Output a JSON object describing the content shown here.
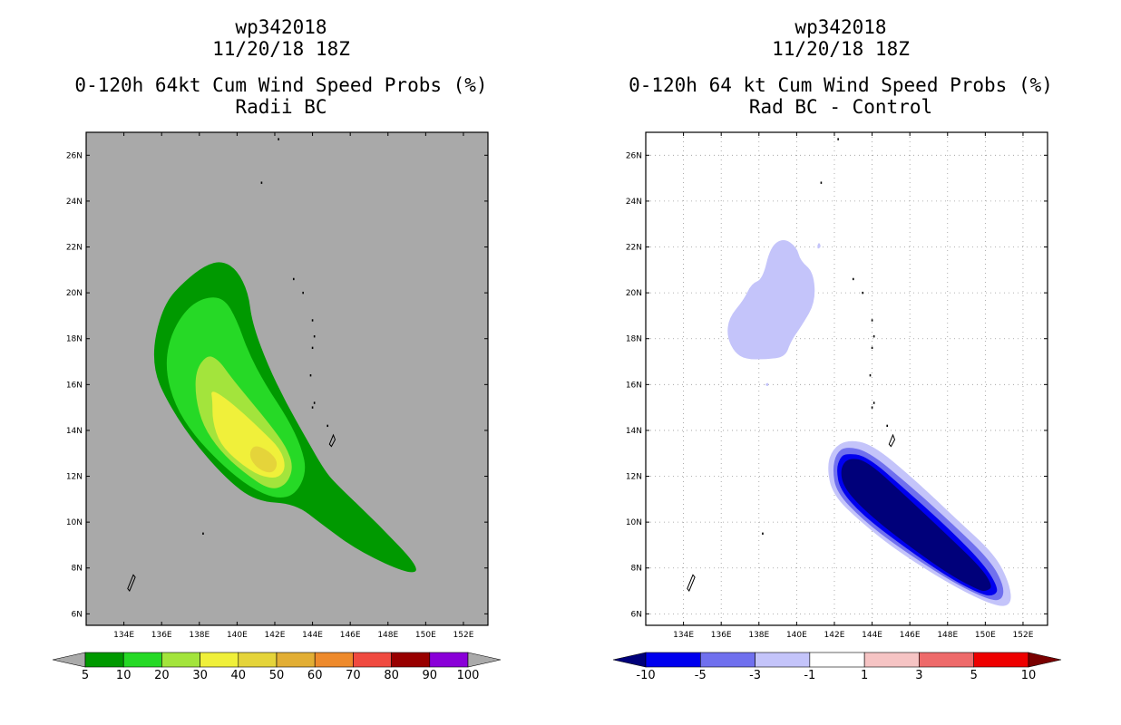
{
  "chart_data": [
    {
      "type": "contour-map",
      "title_lines": [
        "wp342018",
        "11/20/18 18Z",
        "0-120h 64kt Cum Wind Speed Probs (%)",
        "Radii BC"
      ],
      "x_ticks": [
        "134E",
        "136E",
        "138E",
        "140E",
        "142E",
        "144E",
        "146E",
        "148E",
        "150E",
        "152E"
      ],
      "y_ticks": [
        "6N",
        "8N",
        "10N",
        "12N",
        "14N",
        "16N",
        "18N",
        "20N",
        "22N",
        "24N",
        "26N"
      ],
      "xlim": [
        132.0,
        153.3
      ],
      "ylim": [
        5.5,
        27.0
      ],
      "background": "#a9a9a9",
      "gridlines": false,
      "colorbar": {
        "labels": [
          "5",
          "10",
          "20",
          "30",
          "40",
          "50",
          "60",
          "70",
          "80",
          "90",
          "100"
        ],
        "colors": [
          "#009900",
          "#26d926",
          "#a3e43c",
          "#f0f03a",
          "#e5d43a",
          "#e2ae34",
          "#ee8a2c",
          "#f04a40",
          "#980000",
          "#8a00d8"
        ],
        "end_colors": [
          "#aaaaaa",
          "#aaaaaa"
        ]
      },
      "contours": [
        {
          "level": 5,
          "color": "#009900",
          "points": [
            [
              138.3,
              21.2
            ],
            [
              139.2,
              21.4
            ],
            [
              140.0,
              21.0
            ],
            [
              140.6,
              20.0
            ],
            [
              140.8,
              18.7
            ],
            [
              141.6,
              16.9
            ],
            [
              142.6,
              15.2
            ],
            [
              143.7,
              13.6
            ],
            [
              144.6,
              12.3
            ],
            [
              145.2,
              11.7
            ],
            [
              147.5,
              9.9
            ],
            [
              149.7,
              8.0
            ],
            [
              149.2,
              7.7
            ],
            [
              146.5,
              8.7
            ],
            [
              144.5,
              9.9
            ],
            [
              143.1,
              10.8
            ],
            [
              141.0,
              10.9
            ],
            [
              139.4,
              11.9
            ],
            [
              137.5,
              13.7
            ],
            [
              136.2,
              15.4
            ],
            [
              135.6,
              16.6
            ],
            [
              135.6,
              18.0
            ],
            [
              136.2,
              19.6
            ],
            [
              137.2,
              20.5
            ]
          ]
        },
        {
          "level": 10,
          "color": "#26d926",
          "points": [
            [
              138.2,
              19.8
            ],
            [
              139.3,
              19.8
            ],
            [
              140.0,
              18.8
            ],
            [
              140.6,
              17.4
            ],
            [
              141.5,
              16.0
            ],
            [
              142.7,
              14.5
            ],
            [
              143.4,
              13.3
            ],
            [
              143.7,
              12.2
            ],
            [
              143.1,
              11.2
            ],
            [
              142.1,
              11.0
            ],
            [
              140.7,
              11.5
            ],
            [
              139.2,
              12.5
            ],
            [
              137.7,
              13.8
            ],
            [
              136.7,
              15.1
            ],
            [
              136.2,
              16.6
            ],
            [
              136.4,
              18.0
            ],
            [
              137.2,
              19.2
            ]
          ]
        },
        {
          "level": 20,
          "color": "#a3e43c",
          "points": [
            [
              138.4,
              17.3
            ],
            [
              139.0,
              17.1
            ],
            [
              139.7,
              16.3
            ],
            [
              140.6,
              15.4
            ],
            [
              141.7,
              14.3
            ],
            [
              142.6,
              13.3
            ],
            [
              143.0,
              12.4
            ],
            [
              142.6,
              11.6
            ],
            [
              141.7,
              11.4
            ],
            [
              140.3,
              12.2
            ],
            [
              139.1,
              13.1
            ],
            [
              138.2,
              14.2
            ],
            [
              137.8,
              15.4
            ],
            [
              137.8,
              16.6
            ]
          ]
        },
        {
          "level": 30,
          "color": "#f0f03a",
          "points": [
            [
              138.6,
              15.8
            ],
            [
              139.4,
              15.4
            ],
            [
              140.4,
              14.7
            ],
            [
              141.3,
              14.0
            ],
            [
              142.3,
              13.2
            ],
            [
              142.6,
              12.4
            ],
            [
              142.2,
              11.9
            ],
            [
              141.2,
              12.0
            ],
            [
              140.1,
              12.6
            ],
            [
              139.1,
              13.4
            ],
            [
              138.7,
              14.4
            ],
            [
              138.7,
              15.3
            ]
          ]
        },
        {
          "level": 40,
          "color": "#e5d43a",
          "points": [
            [
              140.9,
              13.4
            ],
            [
              141.7,
              13.1
            ],
            [
              142.2,
              12.6
            ],
            [
              141.9,
              12.1
            ],
            [
              141.1,
              12.3
            ],
            [
              140.6,
              12.9
            ]
          ]
        }
      ],
      "land": [
        {
          "name": "guam-saipan",
          "points": [
            [
              145.0,
              13.3
            ],
            [
              145.2,
              13.6
            ],
            [
              145.1,
              13.8
            ],
            [
              144.9,
              13.4
            ]
          ]
        },
        {
          "name": "palau",
          "points": [
            [
              134.3,
              7.0
            ],
            [
              134.6,
              7.6
            ],
            [
              134.5,
              7.7
            ],
            [
              134.2,
              7.1
            ]
          ]
        }
      ]
    },
    {
      "type": "contour-map",
      "title_lines": [
        "wp342018",
        "11/20/18 18Z",
        "0-120h 64 kt Cum Wind Speed Probs (%)",
        "Rad BC - Control"
      ],
      "x_ticks": [
        "134E",
        "136E",
        "138E",
        "140E",
        "142E",
        "144E",
        "146E",
        "148E",
        "150E",
        "152E"
      ],
      "y_ticks": [
        "6N",
        "8N",
        "10N",
        "12N",
        "14N",
        "16N",
        "18N",
        "20N",
        "22N",
        "24N",
        "26N"
      ],
      "xlim": [
        132.0,
        153.3
      ],
      "ylim": [
        5.5,
        27.0
      ],
      "background": "#ffffff",
      "gridlines": true,
      "colorbar": {
        "labels": [
          "-10",
          "-5",
          "-3",
          "-1",
          "1",
          "3",
          "5",
          "10"
        ],
        "colors": [
          "#0000ee",
          "#7070ee",
          "#c4c4fa",
          "#ffffff",
          "#f6c4c4",
          "#ee6a6a",
          "#ee0000"
        ],
        "end_colors": [
          "#00007a",
          "#7a0000"
        ]
      },
      "contours": [
        {
          "level": -1,
          "color": "#c4c4fa",
          "points": [
            [
              137.6,
              20.4
            ],
            [
              138.2,
              20.6
            ],
            [
              138.6,
              22.0
            ],
            [
              139.3,
              22.4
            ],
            [
              140.0,
              22.0
            ],
            [
              140.2,
              21.4
            ],
            [
              140.9,
              20.9
            ],
            [
              141.0,
              19.6
            ],
            [
              140.3,
              18.6
            ],
            [
              139.7,
              17.9
            ],
            [
              139.4,
              17.2
            ],
            [
              138.4,
              17.1
            ],
            [
              137.3,
              17.1
            ],
            [
              136.7,
              17.4
            ],
            [
              136.3,
              18.1
            ],
            [
              136.4,
              18.9
            ],
            [
              137.2,
              19.7
            ]
          ]
        },
        {
          "level": -1,
          "color": "#c4c4fa",
          "points": [
            [
              142.7,
              13.6
            ],
            [
              144.0,
              13.4
            ],
            [
              146.2,
              11.9
            ],
            [
              148.5,
              10.1
            ],
            [
              150.5,
              8.6
            ],
            [
              151.3,
              7.3
            ],
            [
              151.4,
              6.4
            ],
            [
              150.6,
              6.3
            ],
            [
              148.3,
              7.2
            ],
            [
              145.4,
              8.7
            ],
            [
              143.4,
              10.0
            ],
            [
              141.9,
              11.2
            ],
            [
              141.6,
              12.4
            ],
            [
              141.9,
              13.2
            ]
          ]
        },
        {
          "level": -3,
          "color": "#7070ee",
          "points": [
            [
              142.6,
              13.3
            ],
            [
              143.8,
              13.1
            ],
            [
              146.0,
              11.6
            ],
            [
              148.3,
              9.9
            ],
            [
              150.3,
              8.3
            ],
            [
              151.0,
              7.2
            ],
            [
              150.9,
              6.6
            ],
            [
              150.2,
              6.6
            ],
            [
              148.2,
              7.4
            ],
            [
              145.4,
              8.9
            ],
            [
              143.5,
              10.1
            ],
            [
              142.1,
              11.3
            ],
            [
              141.9,
              12.3
            ],
            [
              142.1,
              13.0
            ]
          ]
        },
        {
          "level": -5,
          "color": "#0000ee",
          "points": [
            [
              142.6,
              13.0
            ],
            [
              143.7,
              12.9
            ],
            [
              145.8,
              11.4
            ],
            [
              148.1,
              9.7
            ],
            [
              150.0,
              8.1
            ],
            [
              150.7,
              7.1
            ],
            [
              150.5,
              6.8
            ],
            [
              149.9,
              6.8
            ],
            [
              148.0,
              7.6
            ],
            [
              145.4,
              9.1
            ],
            [
              143.5,
              10.3
            ],
            [
              142.3,
              11.4
            ],
            [
              142.1,
              12.3
            ],
            [
              142.3,
              12.8
            ]
          ]
        },
        {
          "level": -10,
          "color": "#00007a",
          "points": [
            [
              142.7,
              12.8
            ],
            [
              143.7,
              12.7
            ],
            [
              145.7,
              11.2
            ],
            [
              147.9,
              9.5
            ],
            [
              149.8,
              8.0
            ],
            [
              150.4,
              7.2
            ],
            [
              150.1,
              7.0
            ],
            [
              149.7,
              7.0
            ],
            [
              147.9,
              7.8
            ],
            [
              145.4,
              9.3
            ],
            [
              143.6,
              10.5
            ],
            [
              142.5,
              11.5
            ],
            [
              142.3,
              12.3
            ]
          ]
        },
        {
          "level": -1,
          "color": "#c4c4fa",
          "points": [
            [
              141.1,
              22.1
            ],
            [
              141.2,
              22.2
            ],
            [
              141.3,
              22.0
            ],
            [
              141.1,
              21.9
            ]
          ]
        },
        {
          "level": -1,
          "color": "#c4c4fa",
          "points": [
            [
              138.3,
              16.0
            ],
            [
              138.5,
              16.1
            ],
            [
              138.5,
              15.9
            ]
          ]
        }
      ],
      "land": [
        {
          "name": "guam-saipan",
          "points": [
            [
              145.0,
              13.3
            ],
            [
              145.2,
              13.6
            ],
            [
              145.1,
              13.8
            ],
            [
              144.9,
              13.4
            ]
          ]
        },
        {
          "name": "palau",
          "points": [
            [
              134.3,
              7.0
            ],
            [
              134.6,
              7.6
            ],
            [
              134.5,
              7.7
            ],
            [
              134.2,
              7.1
            ]
          ]
        }
      ]
    }
  ]
}
